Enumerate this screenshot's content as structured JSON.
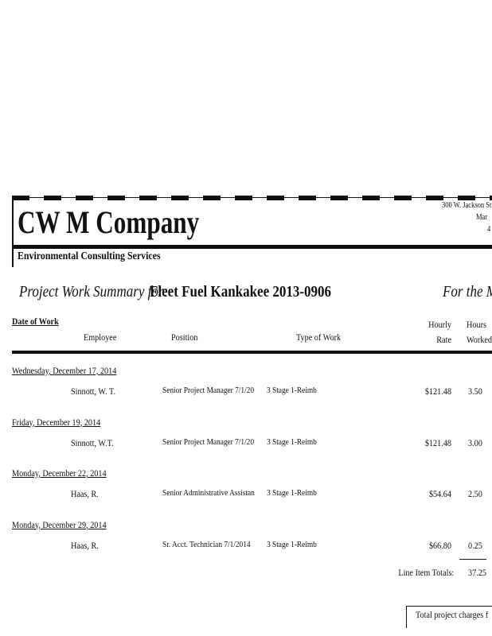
{
  "header": {
    "company": "CW M Company",
    "tagline": "Environmental Consulting Services",
    "address_lines": [
      "300 W. Jackson St",
      "Mar",
      "4"
    ]
  },
  "report": {
    "title_label": "Project Work Summary for:",
    "project": "Fleet Fuel Kankakee 2013-0906",
    "period": "For the M"
  },
  "table": {
    "columns": {
      "date": "Date of Work",
      "employee": "Employee",
      "position": "Position",
      "type": "Type of Work",
      "rate": [
        "Hourly",
        "Rate"
      ],
      "hours": [
        "Hours",
        "Worked"
      ]
    },
    "entries": [
      {
        "date": "Wednesday, December 17, 2014",
        "employee": "Sinnott, W. T.",
        "position": "Senior Project Manager 7/1/20",
        "type": "3 Stage 1-Reimb",
        "rate": "$121.48",
        "hours": "3.50"
      },
      {
        "date": "Friday, December 19, 2014",
        "employee": "Sinnott, W.T.",
        "position": "Senior Project Manager 7/1/20",
        "type": "3 Stage 1-Reimb",
        "rate": "$121.48",
        "hours": "3.00"
      },
      {
        "date": "Monday, December 22, 2014",
        "employee": "Haas, R.",
        "position": "Senior Administrative Assistan",
        "type": "3 Stage 1-Reimb",
        "rate": "$54.64",
        "hours": "2.50"
      },
      {
        "date": "Monday, December 29, 2014",
        "employee": "Haas, R.",
        "position": "Sr. Acct. Technician 7/1/2014",
        "type": "3 Stage 1-Reimb",
        "rate": "$66.80",
        "hours": "0.25"
      }
    ],
    "totals_label": "Line Item Totals:",
    "totals_hours": "37.25"
  },
  "footer": {
    "charges_label": "Total project charges f"
  }
}
